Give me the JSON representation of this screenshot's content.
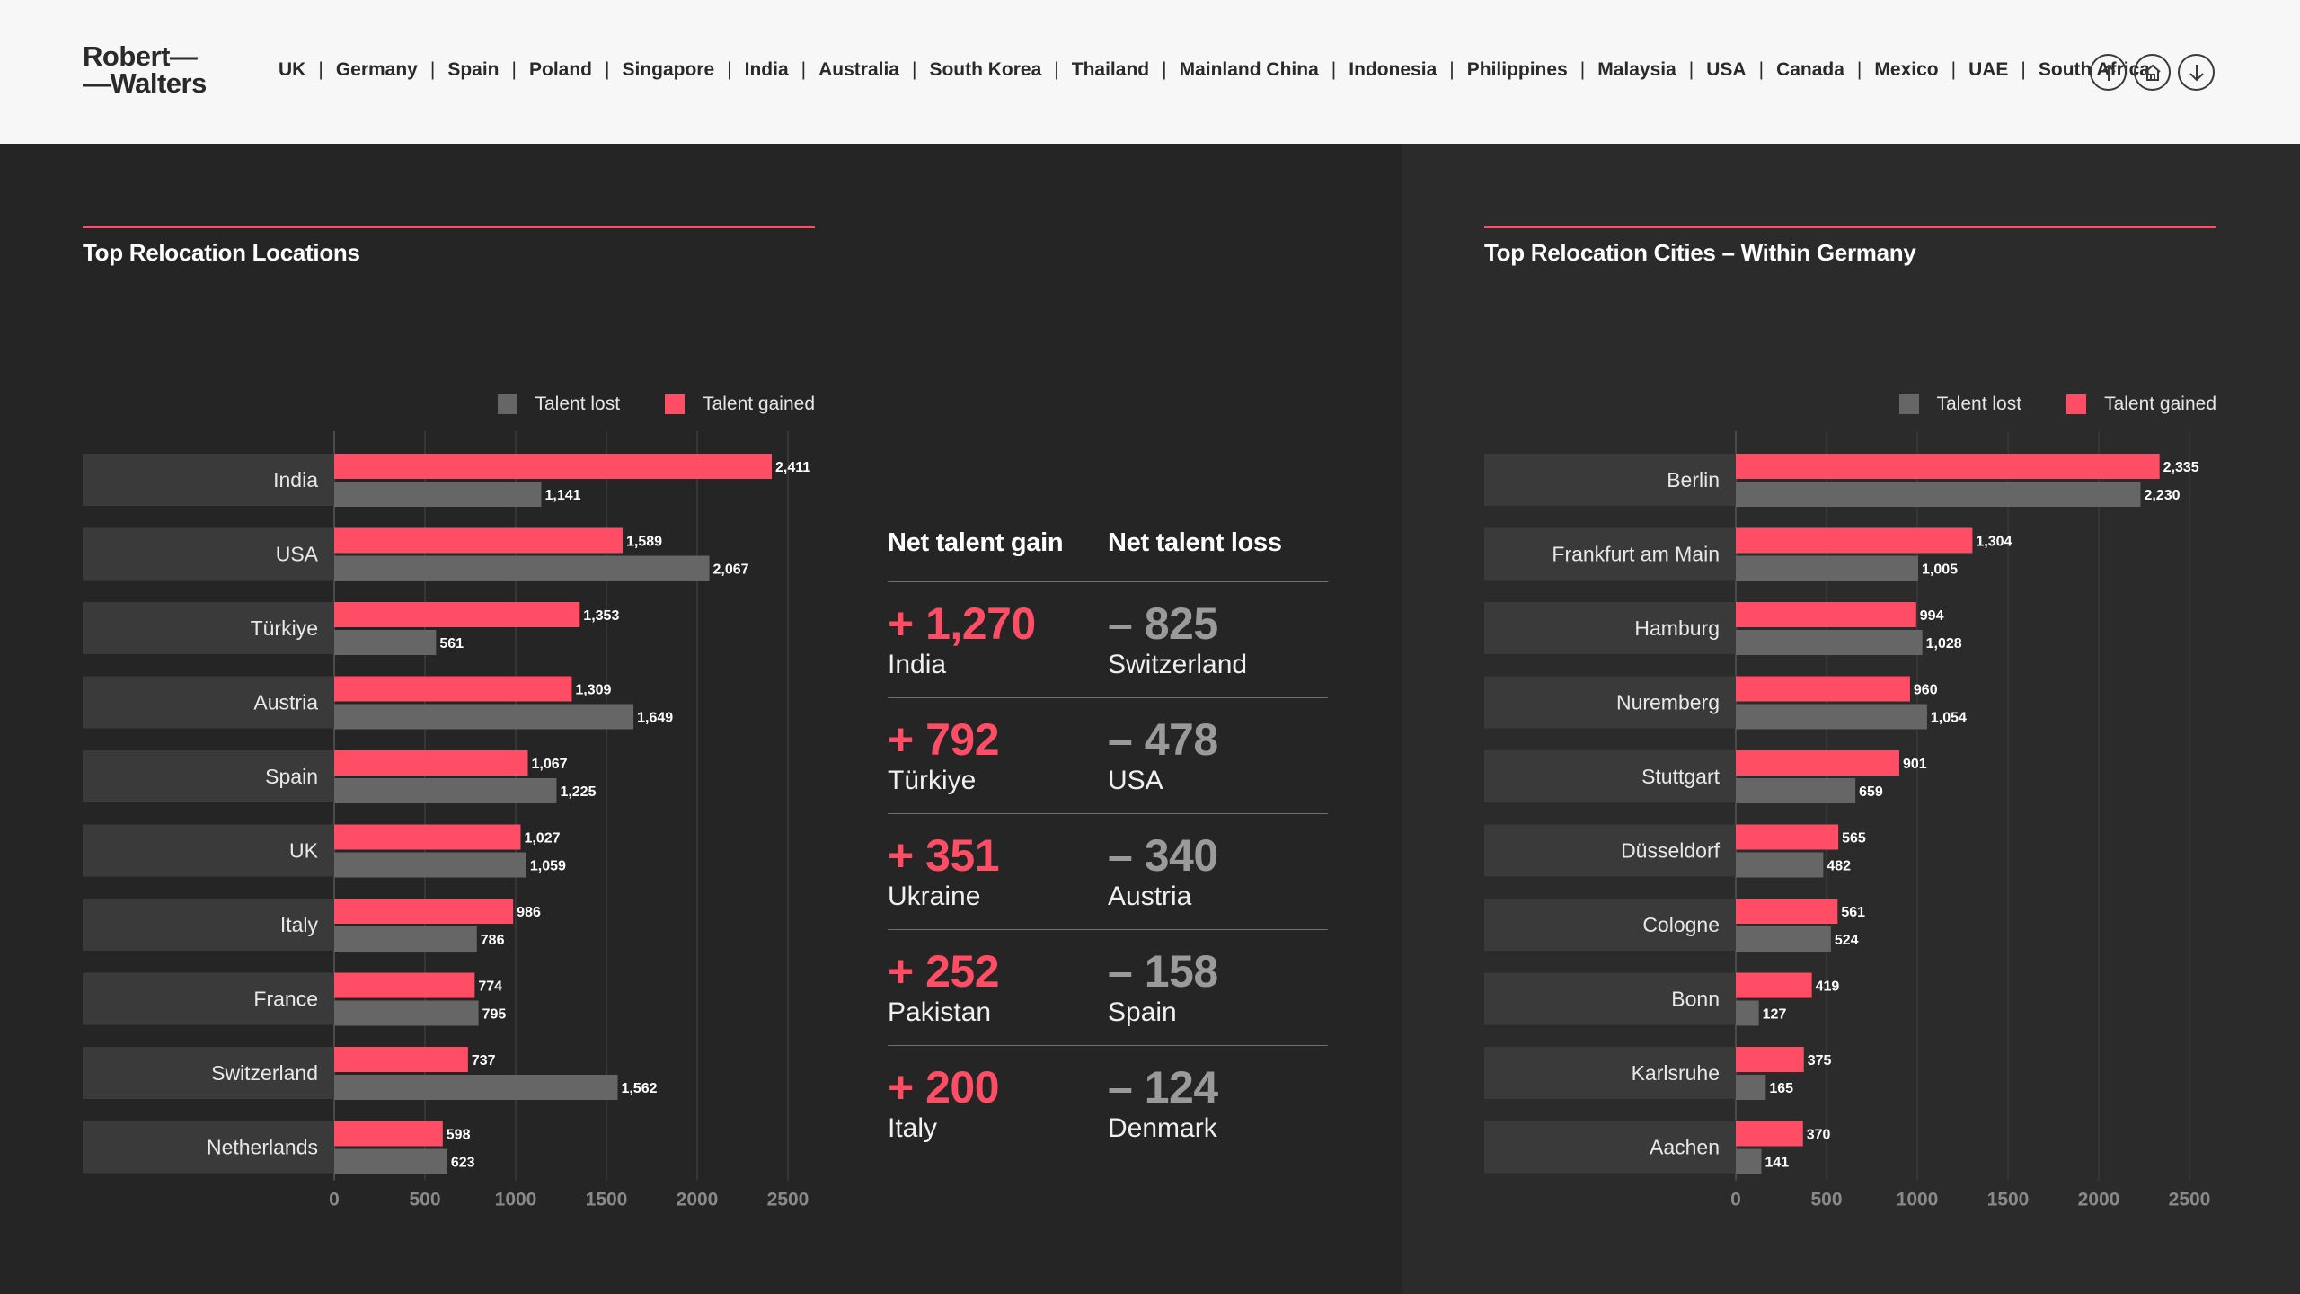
{
  "header": {
    "logo_line1": "Robert—",
    "logo_line2": "—Walters",
    "nav": [
      "UK",
      "Germany",
      "Spain",
      "Poland",
      "Singapore",
      "India",
      "Australia",
      "South Korea",
      "Thailand",
      "Mainland China",
      "Indonesia",
      "Philippines",
      "Malaysia",
      "USA",
      "Canada",
      "Mexico",
      "UAE",
      "South Africa"
    ],
    "icons": [
      "arrow-up-icon",
      "home-icon",
      "arrow-down-icon"
    ]
  },
  "colors": {
    "gained": "#ff4d65",
    "lost": "#666666",
    "accent": "#ff4d65",
    "background": "#252525"
  },
  "legend": {
    "lost": "Talent lost",
    "gained": "Talent gained"
  },
  "net_table": {
    "gain_header": "Net talent gain",
    "loss_header": "Net talent loss",
    "rows": [
      {
        "gain_value": "+ 1,270",
        "gain_country": "India",
        "loss_value": "– 825",
        "loss_country": "Switzerland"
      },
      {
        "gain_value": "+ 792",
        "gain_country": "Türkiye",
        "loss_value": "– 478",
        "loss_country": "USA"
      },
      {
        "gain_value": "+ 351",
        "gain_country": "Ukraine",
        "loss_value": "– 340",
        "loss_country": "Austria"
      },
      {
        "gain_value": "+ 252",
        "gain_country": "Pakistan",
        "loss_value": "– 158",
        "loss_country": "Spain"
      },
      {
        "gain_value": "+ 200",
        "gain_country": "Italy",
        "loss_value": "– 124",
        "loss_country": "Denmark"
      }
    ]
  },
  "chart_data": [
    {
      "type": "bar",
      "orientation": "horizontal",
      "title": "Top Relocation Locations",
      "categories": [
        "India",
        "USA",
        "Türkiye",
        "Austria",
        "Spain",
        "UK",
        "Italy",
        "France",
        "Switzerland",
        "Netherlands"
      ],
      "series": [
        {
          "name": "Talent gained",
          "values": [
            2411,
            1589,
            1353,
            1309,
            1067,
            1027,
            986,
            774,
            737,
            598
          ],
          "labels": [
            "2,411",
            "1,589",
            "1,353",
            "1,309",
            "1,067",
            "1,027",
            "986",
            "774",
            "737",
            "598"
          ]
        },
        {
          "name": "Talent lost",
          "values": [
            1141,
            2067,
            561,
            1649,
            1225,
            1059,
            786,
            795,
            1562,
            623
          ],
          "labels": [
            "1,141",
            "2,067",
            "561",
            "1,649",
            "1,225",
            "1,059",
            "786",
            "795",
            "1,562",
            "623"
          ]
        }
      ],
      "xticks": [
        "0",
        "500",
        "1000",
        "1500",
        "2000",
        "2500"
      ],
      "xlim": [
        0,
        2500
      ],
      "legend_position": "top-right",
      "grid": true
    },
    {
      "type": "bar",
      "orientation": "horizontal",
      "title": "Top Relocation Cities – Within Germany",
      "categories": [
        "Berlin",
        "Frankfurt am Main",
        "Hamburg",
        "Nuremberg",
        "Stuttgart",
        "Düsseldorf",
        "Cologne",
        "Bonn",
        "Karlsruhe",
        "Aachen"
      ],
      "series": [
        {
          "name": "Talent gained",
          "values": [
            2335,
            1304,
            994,
            960,
            901,
            565,
            561,
            419,
            375,
            370
          ],
          "labels": [
            "2,335",
            "1,304",
            "994",
            "960",
            "901",
            "565",
            "561",
            "419",
            "375",
            "370"
          ]
        },
        {
          "name": "Talent lost",
          "values": [
            2230,
            1005,
            1028,
            1054,
            659,
            482,
            524,
            127,
            165,
            141
          ],
          "labels": [
            "2,230",
            "1,005",
            "1,028",
            "1,054",
            "659",
            "482",
            "524",
            "127",
            "165",
            "141"
          ]
        }
      ],
      "xticks": [
        "0",
        "500",
        "1000",
        "1500",
        "2000",
        "2500"
      ],
      "xlim": [
        0,
        2500
      ],
      "legend_position": "top-right",
      "grid": true
    }
  ]
}
